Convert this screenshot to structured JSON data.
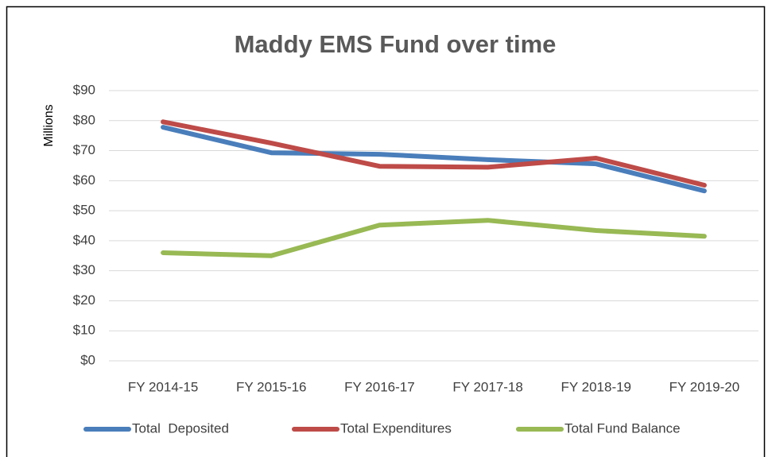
{
  "chart_data": {
    "type": "line",
    "title": "Maddy EMS Fund over time",
    "y_label": "Millions",
    "categories": [
      "FY 2014-15",
      "FY 2015-16",
      "FY 2016-17",
      "FY 2017-18",
      "FY 2018-19",
      "FY 2019-20"
    ],
    "series": [
      {
        "name": "Total  Deposited",
        "color": "#4a7ebb",
        "values": [
          77.8,
          69.3,
          68.8,
          67,
          65.6,
          56.6
        ]
      },
      {
        "name": "Total Expenditures",
        "color": "#be4b48",
        "values": [
          79.6,
          72.5,
          64.8,
          64.5,
          67.5,
          58.5
        ]
      },
      {
        "name": "Total Fund Balance",
        "color": "#98b954",
        "values": [
          36,
          35,
          45.2,
          46.8,
          43.4,
          41.5
        ]
      }
    ],
    "ylim": [
      0,
      90
    ],
    "yticks": [
      {
        "value": 0,
        "label": "$0"
      },
      {
        "value": 10,
        "label": "$10"
      },
      {
        "value": 20,
        "label": "$20"
      },
      {
        "value": 30,
        "label": "$30"
      },
      {
        "value": 40,
        "label": "$40"
      },
      {
        "value": 50,
        "label": "$50"
      },
      {
        "value": 60,
        "label": "$60"
      },
      {
        "value": 70,
        "label": "$70"
      },
      {
        "value": 80,
        "label": "$80"
      },
      {
        "value": 90,
        "label": "$90"
      }
    ],
    "grid": true,
    "legend": "bottom"
  }
}
